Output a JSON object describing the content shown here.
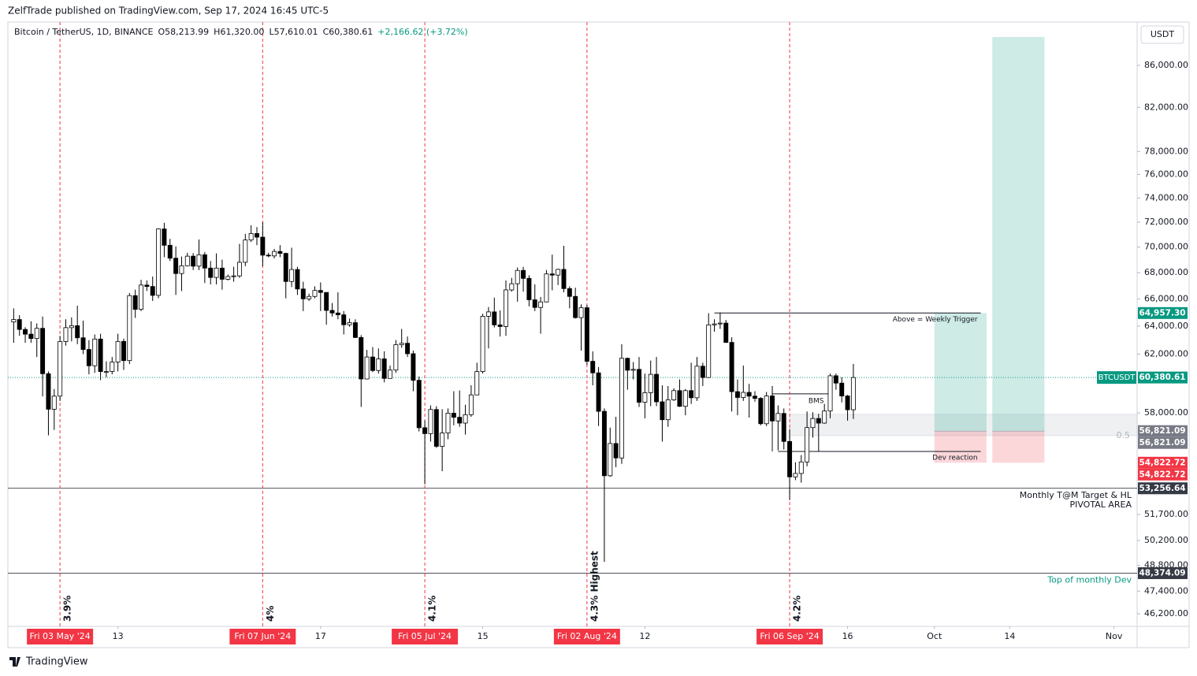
{
  "header": "ZelfTrade published on TradingView.com, Sep 17, 2024 16:45 UTC-5",
  "footer": "TradingView",
  "chart_data": {
    "type": "candlestick",
    "currency": "USDT",
    "log_scale": true,
    "legend": {
      "symbol": "Bitcoin / TetherUS, 1D, BINANCE",
      "items": [
        "O58,213.99",
        "H61,320.00",
        "L57,610.01",
        "C60,380.61",
        "+2,166.62 (+3.72%)"
      ]
    },
    "ylim": [
      45544,
      90165
    ],
    "xlim": [
      "2024-04-24",
      "2024-11-05"
    ],
    "yticks": [
      {
        "value": 86000,
        "label": "86,000.00"
      },
      {
        "value": 82000,
        "label": "82,000.00"
      },
      {
        "value": 78000,
        "label": "78,000.00"
      },
      {
        "value": 76000,
        "label": "76,000.00"
      },
      {
        "value": 74000,
        "label": "74,000.00"
      },
      {
        "value": 72000,
        "label": "72,000.00"
      },
      {
        "value": 70000,
        "label": "70,000.00"
      },
      {
        "value": 68000,
        "label": "68,000.00"
      },
      {
        "value": 66000,
        "label": "66,000.00"
      },
      {
        "value": 64000,
        "label": "64,000.00"
      },
      {
        "value": 62000,
        "label": "62,000.00"
      },
      {
        "value": 58000,
        "label": "58,000.00"
      },
      {
        "value": 51700,
        "label": "51,700.00"
      },
      {
        "value": 50200,
        "label": "50,200.00"
      },
      {
        "value": 48800,
        "label": "48,800.00"
      },
      {
        "value": 47400,
        "label": "47,400.00"
      },
      {
        "value": 46200,
        "label": "46,200.00"
      }
    ],
    "xticks": [
      {
        "value": "2024-05-13",
        "label": "13"
      },
      {
        "value": "2024-06-17",
        "label": "17"
      },
      {
        "value": "2024-07-15",
        "label": "15"
      },
      {
        "value": "2024-08-12",
        "label": "12"
      },
      {
        "value": "2024-09-16",
        "label": "16"
      },
      {
        "value": "2024-10-01",
        "label": "Oct"
      },
      {
        "value": "2024-10-14",
        "label": "14"
      },
      {
        "value": "2024-11-01",
        "label": "Nov"
      }
    ],
    "cycle_lines": [
      {
        "date": "2024-05-03",
        "label": "Fri 03 May '24",
        "note": "3.9%"
      },
      {
        "date": "2024-06-07",
        "label": "Fri 07 Jun '24",
        "note": "4%"
      },
      {
        "date": "2024-07-05",
        "label": "Fri 05 Jul '24",
        "note": "4.1%"
      },
      {
        "date": "2024-08-02",
        "label": "Fri 02 Aug '24",
        "note": "4.3% Highest"
      },
      {
        "date": "2024-09-06",
        "label": "Fri 06 Sep '24",
        "note": "4.2%"
      }
    ],
    "last_price": {
      "name": "BTCUSDT",
      "value": 60380.61,
      "label": "60,380.61"
    },
    "levels": [
      {
        "value": 53256.64,
        "label": "53,256.64",
        "notes": [
          "Monthly T@M Target & HL",
          "PIVOTAL AREA"
        ]
      },
      {
        "value": 48374.09,
        "label": "48,374.09",
        "notes": [
          "Top of monthly Dev"
        ]
      }
    ],
    "positions": [
      {
        "start": "2024-10-01",
        "end": "2024-10-10",
        "entry": 56821.09,
        "entry_label": "56,821.09",
        "target": 64957.3,
        "target_label": "64,957.30",
        "stop": 54822.72,
        "stop_label": "54,822.72"
      },
      {
        "start": "2024-10-11",
        "end": "2024-10-20",
        "entry": 56821.09,
        "entry_label": "56,821.09",
        "target": 88815,
        "stop": 54822.72,
        "stop_label": "54,822.72"
      }
    ],
    "zone": {
      "start": "2024-09-06",
      "high": 57910,
      "low": 56530,
      "label": "0.5"
    },
    "lines": [
      {
        "start": "2024-08-24",
        "end": "2024-10-09",
        "value": 64957.3,
        "label": "Above = Weekly Trigger"
      },
      {
        "start": "2024-09-03",
        "end": "2024-09-13",
        "value": 59270,
        "label": "BMS"
      },
      {
        "start": "2024-09-04",
        "end": "2024-10-09",
        "value": 55530,
        "label": "Dev reaction"
      }
    ],
    "x": [
      "2024-04-25",
      "2024-04-26",
      "2024-04-27",
      "2024-04-28",
      "2024-04-29",
      "2024-04-30",
      "2024-05-01",
      "2024-05-02",
      "2024-05-03",
      "2024-05-04",
      "2024-05-05",
      "2024-05-06",
      "2024-05-07",
      "2024-05-08",
      "2024-05-09",
      "2024-05-10",
      "2024-05-11",
      "2024-05-12",
      "2024-05-13",
      "2024-05-14",
      "2024-05-15",
      "2024-05-16",
      "2024-05-17",
      "2024-05-18",
      "2024-05-19",
      "2024-05-20",
      "2024-05-21",
      "2024-05-22",
      "2024-05-23",
      "2024-05-24",
      "2024-05-25",
      "2024-05-26",
      "2024-05-27",
      "2024-05-28",
      "2024-05-29",
      "2024-05-30",
      "2024-05-31",
      "2024-06-01",
      "2024-06-02",
      "2024-06-03",
      "2024-06-04",
      "2024-06-05",
      "2024-06-06",
      "2024-06-07",
      "2024-06-08",
      "2024-06-09",
      "2024-06-10",
      "2024-06-11",
      "2024-06-12",
      "2024-06-13",
      "2024-06-14",
      "2024-06-15",
      "2024-06-16",
      "2024-06-17",
      "2024-06-18",
      "2024-06-19",
      "2024-06-20",
      "2024-06-21",
      "2024-06-22",
      "2024-06-23",
      "2024-06-24",
      "2024-06-25",
      "2024-06-26",
      "2024-06-27",
      "2024-06-28",
      "2024-06-29",
      "2024-06-30",
      "2024-07-01",
      "2024-07-02",
      "2024-07-03",
      "2024-07-04",
      "2024-07-05",
      "2024-07-06",
      "2024-07-07",
      "2024-07-08",
      "2024-07-09",
      "2024-07-10",
      "2024-07-11",
      "2024-07-12",
      "2024-07-13",
      "2024-07-14",
      "2024-07-15",
      "2024-07-16",
      "2024-07-17",
      "2024-07-18",
      "2024-07-19",
      "2024-07-20",
      "2024-07-21",
      "2024-07-22",
      "2024-07-23",
      "2024-07-24",
      "2024-07-25",
      "2024-07-26",
      "2024-07-27",
      "2024-07-28",
      "2024-07-29",
      "2024-07-30",
      "2024-07-31",
      "2024-08-01",
      "2024-08-02",
      "2024-08-03",
      "2024-08-04",
      "2024-08-05",
      "2024-08-06",
      "2024-08-07",
      "2024-08-08",
      "2024-08-09",
      "2024-08-10",
      "2024-08-11",
      "2024-08-12",
      "2024-08-13",
      "2024-08-14",
      "2024-08-15",
      "2024-08-16",
      "2024-08-17",
      "2024-08-18",
      "2024-08-19",
      "2024-08-20",
      "2024-08-21",
      "2024-08-22",
      "2024-08-23",
      "2024-08-24",
      "2024-08-25",
      "2024-08-26",
      "2024-08-27",
      "2024-08-28",
      "2024-08-29",
      "2024-08-30",
      "2024-08-31",
      "2024-09-01",
      "2024-09-02",
      "2024-09-03",
      "2024-09-04",
      "2024-09-05",
      "2024-09-06",
      "2024-09-07",
      "2024-09-08",
      "2024-09-09",
      "2024-09-10",
      "2024-09-11",
      "2024-09-12",
      "2024-09-13",
      "2024-09-14",
      "2024-09-15",
      "2024-09-16",
      "2024-09-17"
    ],
    "ohlc": [
      [
        64300,
        65300,
        62800,
        64480
      ],
      [
        64480,
        64800,
        63300,
        63760
      ],
      [
        63760,
        63920,
        62800,
        63420
      ],
      [
        63420,
        64350,
        62800,
        63110
      ],
      [
        63110,
        64200,
        61800,
        63840
      ],
      [
        63840,
        64700,
        59100,
        60640
      ],
      [
        60640,
        60800,
        56550,
        58250
      ],
      [
        58250,
        59600,
        56900,
        59120
      ],
      [
        59120,
        63300,
        58800,
        62890
      ],
      [
        62890,
        64500,
        62600,
        63890
      ],
      [
        63890,
        64640,
        62900,
        64030
      ],
      [
        64030,
        65500,
        62700,
        63160
      ],
      [
        63160,
        64400,
        62000,
        62330
      ],
      [
        62330,
        62990,
        60600,
        61190
      ],
      [
        61190,
        63400,
        60700,
        63070
      ],
      [
        63070,
        63450,
        60200,
        60790
      ],
      [
        60790,
        61500,
        60400,
        60790
      ],
      [
        60790,
        61800,
        60600,
        61450
      ],
      [
        61450,
        63450,
        60800,
        62900
      ],
      [
        62900,
        63100,
        60900,
        61550
      ],
      [
        61550,
        66450,
        61300,
        66250
      ],
      [
        66250,
        66700,
        64600,
        65230
      ],
      [
        65230,
        67450,
        65100,
        67050
      ],
      [
        67050,
        67400,
        66600,
        66940
      ],
      [
        66940,
        67700,
        65850,
        66270
      ],
      [
        66270,
        71500,
        66050,
        71450
      ],
      [
        71450,
        71950,
        69200,
        70140
      ],
      [
        70140,
        70650,
        68900,
        69120
      ],
      [
        69120,
        70050,
        66300,
        67930
      ],
      [
        67930,
        69250,
        66600,
        68530
      ],
      [
        68530,
        69550,
        68500,
        69280
      ],
      [
        69280,
        69520,
        68200,
        68500
      ],
      [
        68500,
        70600,
        68200,
        69390
      ],
      [
        69390,
        69600,
        67200,
        68350
      ],
      [
        68350,
        68900,
        67100,
        67630
      ],
      [
        67630,
        69500,
        67100,
        68350
      ],
      [
        68350,
        69000,
        66700,
        67490
      ],
      [
        67490,
        67850,
        67400,
        67700
      ],
      [
        67700,
        68450,
        67300,
        67750
      ],
      [
        67750,
        70250,
        67600,
        68800
      ],
      [
        68800,
        71050,
        68500,
        70560
      ],
      [
        70560,
        71750,
        70400,
        71080
      ],
      [
        71080,
        71600,
        70150,
        70790
      ],
      [
        70790,
        72000,
        68500,
        69360
      ],
      [
        69360,
        69550,
        69200,
        69300
      ],
      [
        69300,
        69850,
        69100,
        69650
      ],
      [
        69650,
        70150,
        69200,
        69500
      ],
      [
        69500,
        69550,
        66050,
        67320
      ],
      [
        67320,
        69950,
        66900,
        68240
      ],
      [
        68240,
        68450,
        66300,
        66750
      ],
      [
        66750,
        67300,
        65100,
        66010
      ],
      [
        66010,
        66400,
        65850,
        66190
      ],
      [
        66190,
        66950,
        66050,
        66640
      ],
      [
        66640,
        67250,
        65100,
        66490
      ],
      [
        66490,
        66500,
        64100,
        65150
      ],
      [
        65150,
        65700,
        64700,
        64960
      ],
      [
        64960,
        66500,
        64500,
        64830
      ],
      [
        64830,
        65100,
        63400,
        64100
      ],
      [
        64100,
        64550,
        63950,
        64250
      ],
      [
        64250,
        64500,
        63150,
        63180
      ],
      [
        63180,
        63350,
        58400,
        60280
      ],
      [
        60280,
        62300,
        60250,
        61800
      ],
      [
        61800,
        62500,
        60750,
        60860
      ],
      [
        60860,
        62400,
        60650,
        61670
      ],
      [
        61670,
        62200,
        60050,
        60320
      ],
      [
        60320,
        61200,
        60300,
        60890
      ],
      [
        60890,
        63000,
        60700,
        62670
      ],
      [
        62670,
        63800,
        62450,
        62770
      ],
      [
        62770,
        63250,
        61800,
        62030
      ],
      [
        62030,
        62250,
        59450,
        60190
      ],
      [
        60190,
        60450,
        56800,
        57040
      ],
      [
        57040,
        57500,
        53500,
        56660
      ],
      [
        56660,
        58500,
        56150,
        58230
      ],
      [
        58230,
        58450,
        55750,
        55850
      ],
      [
        55850,
        58250,
        54300,
        56700
      ],
      [
        56700,
        58300,
        56300,
        57990
      ],
      [
        57990,
        59450,
        57200,
        57720
      ],
      [
        57720,
        59500,
        57100,
        57340
      ],
      [
        57340,
        58550,
        56600,
        57890
      ],
      [
        57890,
        59850,
        57750,
        59200
      ],
      [
        59200,
        61400,
        59200,
        60790
      ],
      [
        60790,
        64900,
        60650,
        64720
      ],
      [
        64720,
        65400,
        62400,
        65040
      ],
      [
        65040,
        66100,
        63900,
        64090
      ],
      [
        64090,
        65150,
        63250,
        63970
      ],
      [
        63970,
        67400,
        63300,
        66680
      ],
      [
        66680,
        67600,
        66550,
        67150
      ],
      [
        67150,
        68400,
        65800,
        68170
      ],
      [
        68170,
        68450,
        66550,
        67560
      ],
      [
        67560,
        67800,
        65450,
        65940
      ],
      [
        65940,
        67100,
        65100,
        65370
      ],
      [
        65370,
        66150,
        63450,
        65780
      ],
      [
        65780,
        68200,
        65750,
        67900
      ],
      [
        67900,
        69400,
        66650,
        67810
      ],
      [
        67810,
        68300,
        67050,
        68250
      ],
      [
        68250,
        70100,
        66500,
        66780
      ],
      [
        66780,
        66950,
        65300,
        66190
      ],
      [
        66190,
        66850,
        64550,
        64620
      ],
      [
        64620,
        65600,
        62250,
        65350
      ],
      [
        65350,
        65550,
        61250,
        61500
      ],
      [
        61500,
        62200,
        59850,
        60700
      ],
      [
        60700,
        61100,
        57150,
        58110
      ],
      [
        58110,
        58300,
        49000,
        54020
      ],
      [
        54020,
        57050,
        53950,
        56030
      ],
      [
        56030,
        57750,
        54550,
        55120
      ],
      [
        55120,
        62700,
        54750,
        61710
      ],
      [
        61710,
        61750,
        59550,
        60880
      ],
      [
        60880,
        61450,
        60250,
        60940
      ],
      [
        60940,
        61800,
        58400,
        58710
      ],
      [
        58710,
        60650,
        57650,
        59350
      ],
      [
        59350,
        61550,
        58450,
        60600
      ],
      [
        60600,
        61800,
        58450,
        58740
      ],
      [
        58740,
        59850,
        56150,
        57560
      ],
      [
        57560,
        59800,
        57100,
        58870
      ],
      [
        58870,
        59650,
        58800,
        59490
      ],
      [
        59490,
        60250,
        58400,
        58440
      ],
      [
        58440,
        59600,
        57850,
        59490
      ],
      [
        59490,
        61400,
        58600,
        59010
      ],
      [
        59010,
        61800,
        58800,
        61160
      ],
      [
        61160,
        61400,
        59800,
        60380
      ],
      [
        60380,
        64950,
        60350,
        64090
      ],
      [
        64090,
        64500,
        63600,
        64160
      ],
      [
        64160,
        65000,
        63800,
        64220
      ],
      [
        64220,
        64450,
        62800,
        62830
      ],
      [
        62830,
        63200,
        58100,
        59420
      ],
      [
        59420,
        60250,
        57850,
        59030
      ],
      [
        59030,
        61200,
        58800,
        59370
      ],
      [
        59370,
        59950,
        57700,
        59120
      ],
      [
        59120,
        59450,
        58750,
        58970
      ],
      [
        58970,
        59050,
        57200,
        57300
      ],
      [
        57300,
        59400,
        57150,
        59130
      ],
      [
        59130,
        59800,
        57400,
        57480
      ],
      [
        57480,
        58500,
        55600,
        57970
      ],
      [
        57970,
        58300,
        55650,
        56160
      ],
      [
        56160,
        56950,
        52550,
        53950
      ],
      [
        53950,
        54850,
        53750,
        54160
      ],
      [
        54160,
        55300,
        53600,
        54870
      ],
      [
        54870,
        58100,
        54600,
        57050
      ],
      [
        57050,
        58050,
        56400,
        57640
      ],
      [
        57640,
        57950,
        55550,
        57340
      ],
      [
        57340,
        58600,
        57300,
        58130
      ],
      [
        58130,
        60650,
        57650,
        60500
      ],
      [
        60500,
        60650,
        59550,
        60000
      ],
      [
        60000,
        60400,
        58700,
        59130
      ],
      [
        59130,
        59200,
        57500,
        58213.99
      ],
      [
        58213.99,
        61320,
        57610.01,
        60380.61
      ]
    ]
  }
}
